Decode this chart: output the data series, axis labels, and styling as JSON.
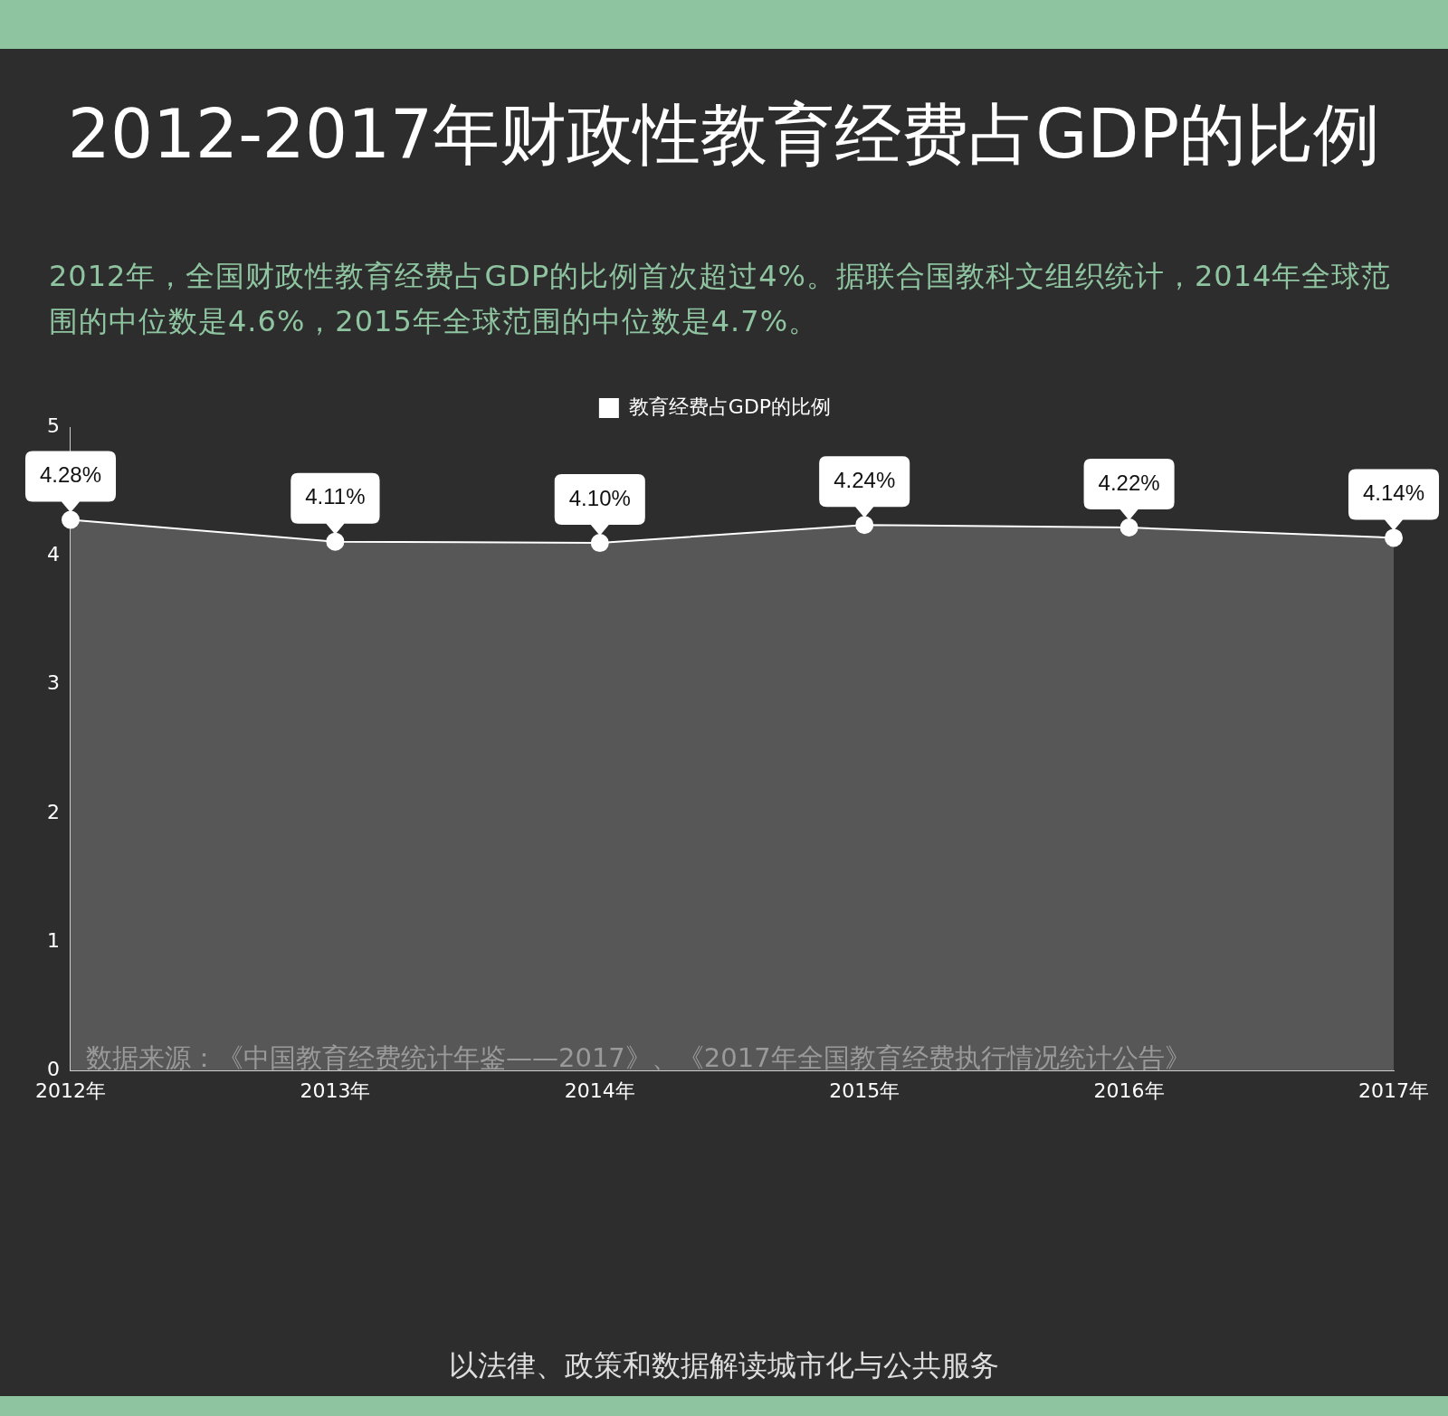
{
  "chart_data": {
    "type": "area",
    "title": "2012-2017年财政性教育经费占GDP的比例",
    "subtitle": "2012年，全国财政性教育经费占GDP的比例首次超过4%。据联合国教科文组织统计，2014年全球范围的中位数是4.6%，2015年全球范围的中位数是4.7%。",
    "categories": [
      "2012年",
      "2013年",
      "2014年",
      "2015年",
      "2016年",
      "2017年"
    ],
    "series": [
      {
        "name": "教育经费占GDP的比例",
        "color": "#ffffff",
        "values": [
          4.28,
          4.11,
          4.1,
          4.24,
          4.22,
          4.14
        ],
        "value_labels": [
          "4.28%",
          "4.11%",
          "4.10%",
          "4.24%",
          "4.22%",
          "4.14%"
        ]
      }
    ],
    "ylim": [
      0,
      5
    ],
    "yticks": [
      0,
      1,
      2,
      3,
      4,
      5
    ],
    "grid": false,
    "legend": "top",
    "marker": "circle",
    "line_style": "solid",
    "annotations": [
      "数据来源：《中国教育经费统计年鉴——2017》、《2017年全国教育经费执行情况统计公告》",
      "以法律、政策和数据解读城市化与公共服务"
    ]
  }
}
